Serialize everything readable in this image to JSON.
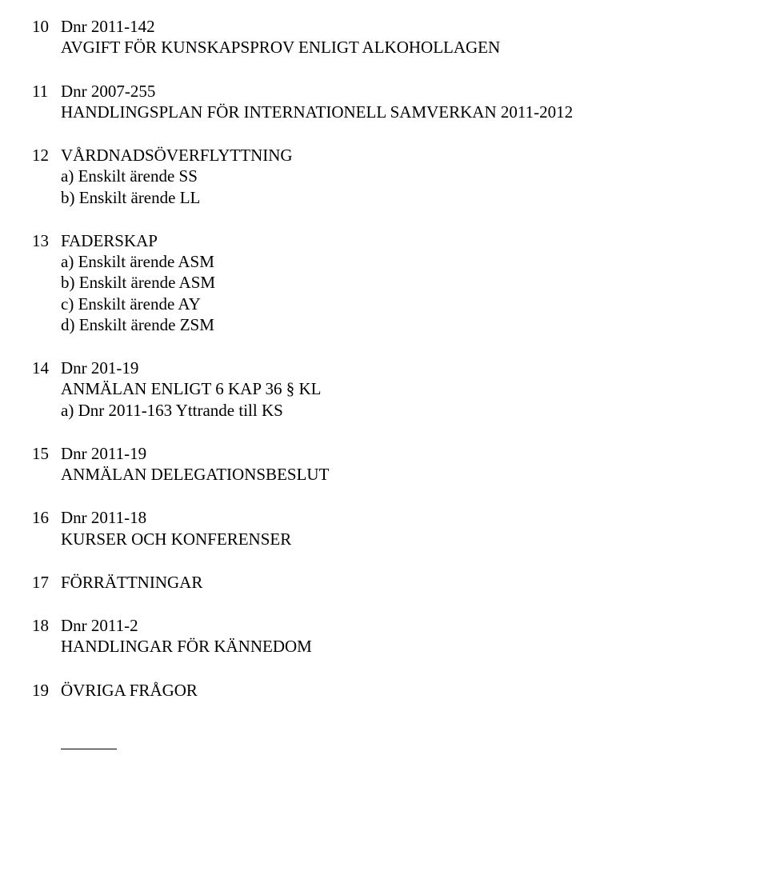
{
  "colors": {
    "text": "#000000",
    "background": "#ffffff"
  },
  "typography": {
    "family": "Times New Roman",
    "size_pt": 16,
    "weight": "normal"
  },
  "items": [
    {
      "num": "10",
      "lines": [
        "Dnr 2011-142",
        "AVGIFT FÖR KUNSKAPSPROV ENLIGT ALKOHOLLAGEN"
      ],
      "subs": []
    },
    {
      "num": "11",
      "lines": [
        "Dnr 2007-255",
        "HANDLINGSPLAN FÖR INTERNATIONELL SAMVERKAN 2011-2012"
      ],
      "subs": []
    },
    {
      "num": "12",
      "lines": [
        "VÅRDNADSÖVERFLYTTNING"
      ],
      "subs": [
        "a) Enskilt ärende SS",
        "b) Enskilt ärende LL"
      ]
    },
    {
      "num": "13",
      "lines": [
        "FADERSKAP"
      ],
      "subs": [
        "a) Enskilt ärende ASM",
        "b) Enskilt ärende ASM",
        "c) Enskilt ärende AY",
        "d) Enskilt ärende ZSM"
      ]
    },
    {
      "num": "14",
      "lines": [
        "Dnr 201-19",
        "ANMÄLAN ENLIGT 6 KAP 36 § KL"
      ],
      "subs": [
        "a) Dnr 2011-163 Yttrande till KS"
      ]
    },
    {
      "num": "15",
      "lines": [
        "Dnr 2011-19",
        "ANMÄLAN DELEGATIONSBESLUT"
      ],
      "subs": []
    },
    {
      "num": "16",
      "lines": [
        "Dnr 2011-18",
        "KURSER OCH KONFERENSER"
      ],
      "subs": []
    },
    {
      "num": "17",
      "lines": [
        "FÖRRÄTTNINGAR"
      ],
      "subs": []
    },
    {
      "num": "18",
      "lines": [
        "Dnr 2011-2",
        "HANDLINGAR FÖR KÄNNEDOM"
      ],
      "subs": []
    },
    {
      "num": "19",
      "lines": [
        "ÖVRIGA FRÅGOR"
      ],
      "subs": []
    }
  ]
}
